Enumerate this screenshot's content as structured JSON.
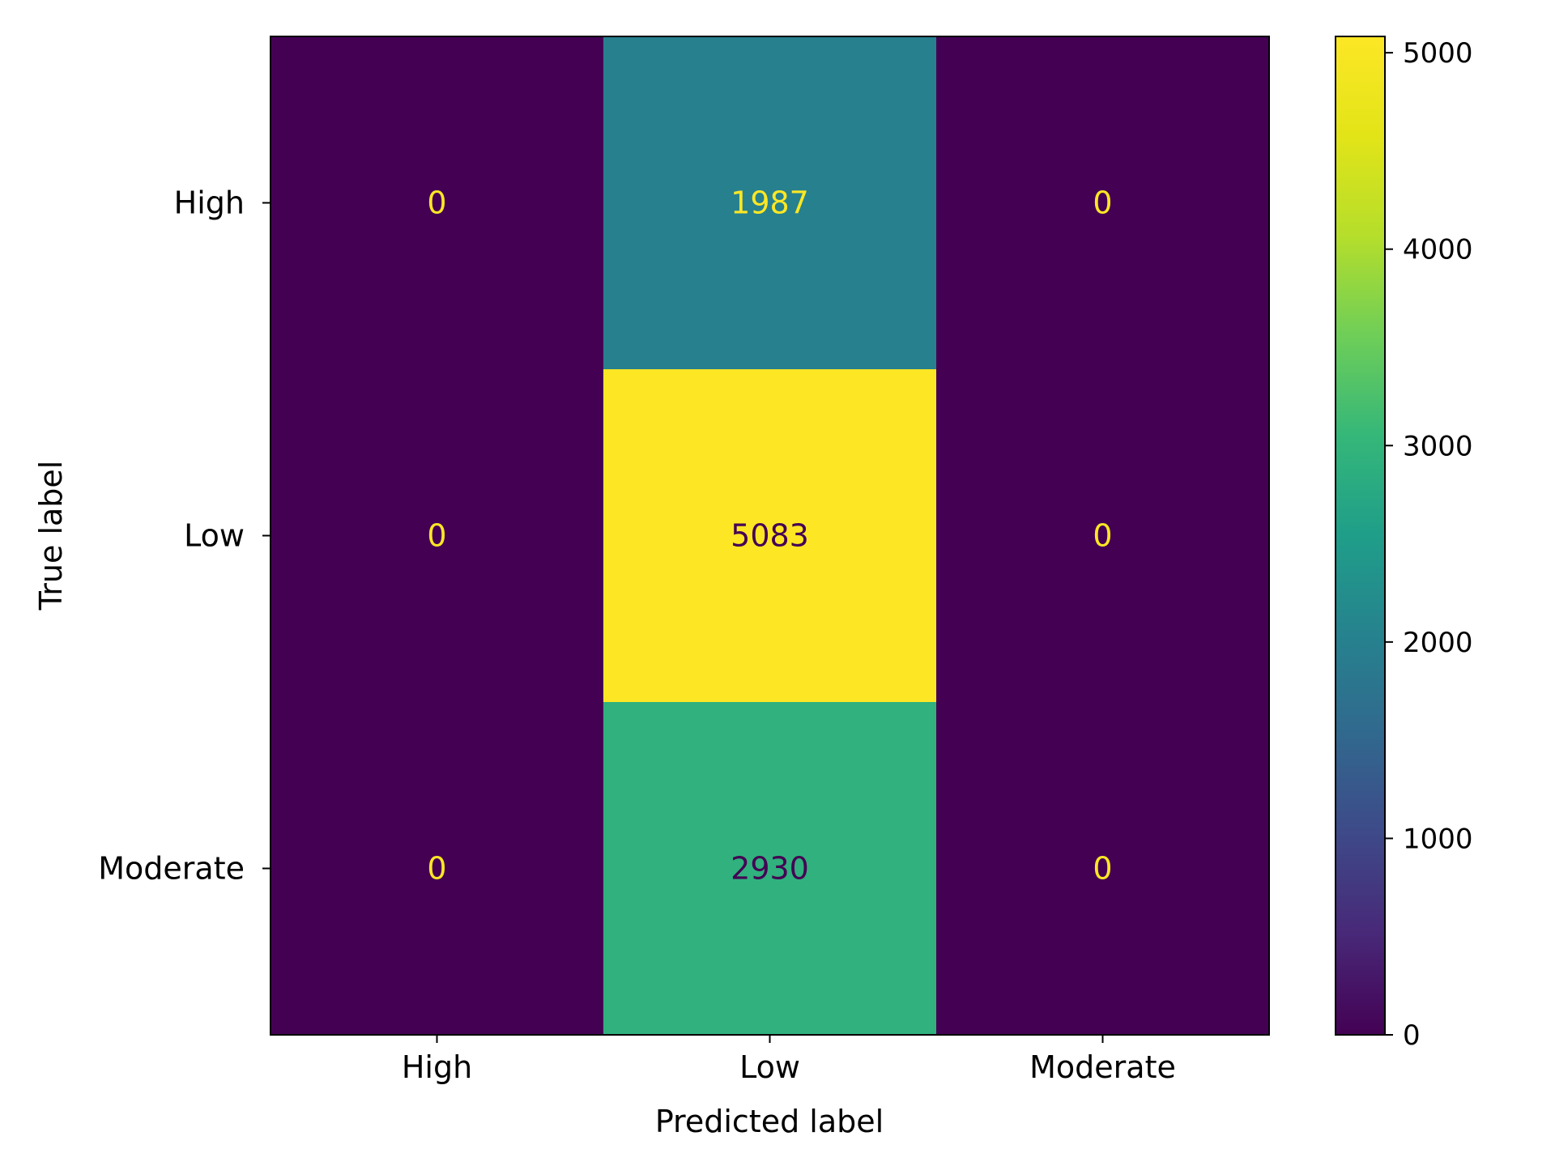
{
  "chart_data": {
    "type": "heatmap",
    "title": "",
    "xlabel": "Predicted label",
    "ylabel": "True label",
    "x_categories": [
      "High",
      "Low",
      "Moderate"
    ],
    "y_categories": [
      "High",
      "Low",
      "Moderate"
    ],
    "values": [
      [
        0,
        1987,
        0
      ],
      [
        0,
        5083,
        0
      ],
      [
        0,
        2930,
        0
      ]
    ],
    "colormap": "viridis",
    "colorbar": {
      "range": [
        0,
        5083
      ],
      "ticks": [
        0,
        1000,
        2000,
        3000,
        4000,
        5000
      ],
      "tick_labels": [
        "0",
        "1000",
        "2000",
        "3000",
        "4000",
        "5000"
      ]
    },
    "text_colors": {
      "light": "#fde725",
      "dark": "#440154"
    },
    "grid": false
  }
}
